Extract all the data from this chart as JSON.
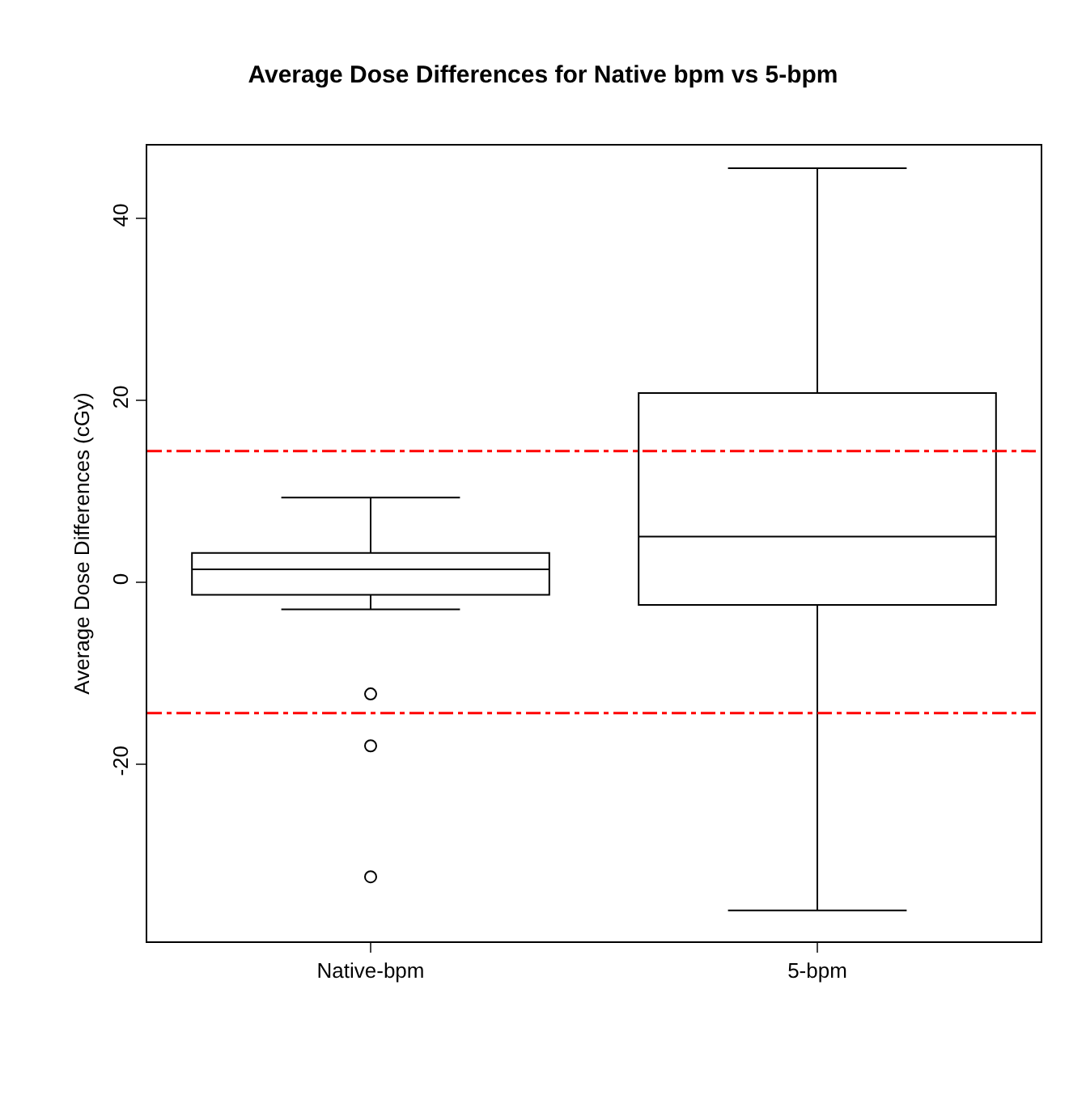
{
  "chart_data": {
    "type": "box",
    "title": "Average Dose Differences for Native bpm vs 5-bpm",
    "ylabel": "Average Dose Differences (cGy)",
    "categories": [
      "Native-bpm",
      "5-bpm"
    ],
    "boxes": [
      {
        "low": -3.0,
        "q1": -1.4,
        "median": 1.4,
        "q3": 3.2,
        "high": 9.3,
        "outliers": [
          -12.3,
          -18.0,
          -32.4
        ]
      },
      {
        "low": -36.1,
        "q1": -2.5,
        "median": 5.0,
        "q3": 20.8,
        "high": 45.5
      }
    ],
    "ylim": [
      -39.5,
      48
    ],
    "yticks": [
      -20,
      0,
      20,
      40
    ],
    "grid": false,
    "ref_lines": [
      {
        "axis": "y",
        "value": 14.4,
        "color": "#ff0000",
        "line_style": "dashdot"
      },
      {
        "axis": "y",
        "value": -14.4,
        "color": "#ff0000",
        "line_style": "dashdot"
      }
    ]
  }
}
